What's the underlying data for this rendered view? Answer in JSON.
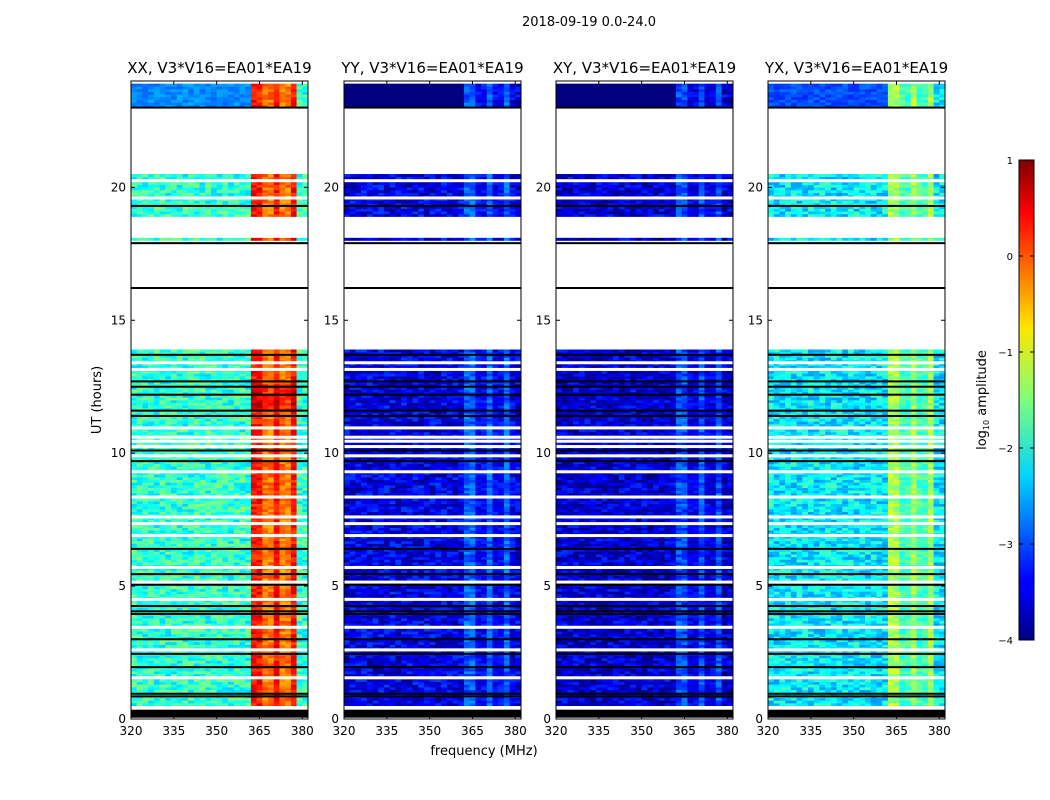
{
  "figure_title": "2018-09-19 0.0-24.0",
  "chart_data": {
    "type": "heatmap",
    "suptitle": "2018-09-19 0.0-24.0",
    "xlabel": "frequency (MHz)",
    "ylabel": "UT (hours)",
    "x_range": [
      320,
      382
    ],
    "y_range": [
      0,
      24
    ],
    "xticks": [
      320,
      335,
      350,
      365,
      380
    ],
    "yticks": [
      0,
      5,
      10,
      15,
      20
    ],
    "panels": [
      {
        "title": "XX, V3*V16=EA01*EA19",
        "base_level": -1.9,
        "rfi_level": 0.2,
        "bg_color": "#5bd0ff"
      },
      {
        "title": "YY, V3*V16=EA01*EA19",
        "base_level": -3.5,
        "rfi_level": -3.0,
        "bg_color": "#0a2fe0"
      },
      {
        "title": "XY, V3*V16=EA01*EA19",
        "base_level": -3.6,
        "rfi_level": -3.1,
        "bg_color": "#0a2ad8"
      },
      {
        "title": "YX, V3*V16=EA01*EA19",
        "base_level": -2.2,
        "rfi_level": -1.4,
        "bg_color": "#3aaaf5"
      }
    ],
    "rfi_band_mhz": [
      363,
      378
    ],
    "data_gaps_ut": [
      [
        13.8,
        16.2
      ],
      [
        16.2,
        17.9
      ],
      [
        18.0,
        18.9
      ],
      [
        20.5,
        23.0
      ]
    ],
    "colorbar": {
      "label": "log10 amplitude",
      "label_main": "log",
      "label_sub": "10",
      "label_rest": " amplitude",
      "ticks": [
        1,
        0,
        -1,
        -2,
        -3,
        -4
      ],
      "tick_labels": [
        "1",
        "0",
        "−1",
        "−2",
        "−3",
        "−4"
      ],
      "range": [
        -4,
        1
      ],
      "colormap": "jet"
    }
  }
}
